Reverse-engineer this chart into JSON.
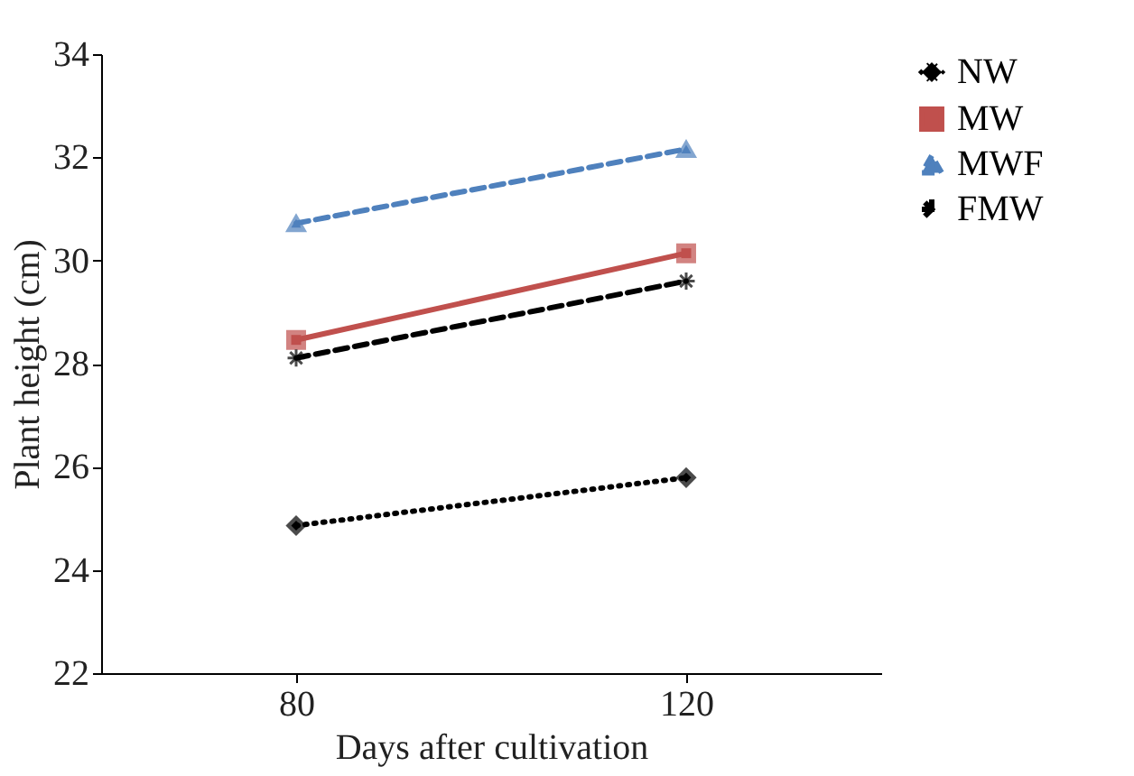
{
  "chart_data": {
    "type": "line",
    "xlabel": "Days after cultivation",
    "ylabel": "Plant height (cm)",
    "categories": [
      "80",
      "120"
    ],
    "series": [
      {
        "name": "NW",
        "color": "#000000",
        "marker": "diamond",
        "line_style": "dotted",
        "values": [
          24.86,
          25.79
        ]
      },
      {
        "name": "MW",
        "color": "#c0504d",
        "marker": "square",
        "line_style": "solid",
        "values": [
          28.46,
          30.14
        ]
      },
      {
        "name": "MWF",
        "color": "#4f81bd",
        "marker": "triangle",
        "line_style": "dashed",
        "values": [
          30.72,
          32.16
        ]
      },
      {
        "name": "FMW",
        "color": "#000000",
        "marker": "cross",
        "line_style": "dashed",
        "values": [
          28.11,
          29.6
        ]
      }
    ],
    "ylim": [
      22,
      34
    ],
    "yticks": [
      22,
      24,
      26,
      28,
      30,
      32,
      34
    ],
    "grid": false,
    "legend": "right"
  }
}
